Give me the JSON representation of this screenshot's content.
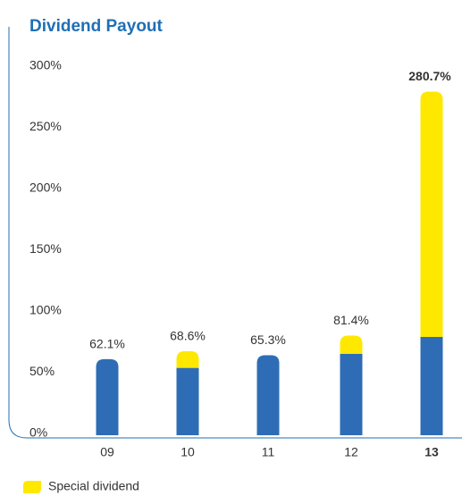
{
  "chart_data": {
    "type": "stacked_bar",
    "title": "Dividend Payout",
    "categories": [
      "09",
      "10",
      "11",
      "12",
      "13"
    ],
    "series": [
      {
        "color": "#2e6db5",
        "values": [
          62.1,
          55,
          65.3,
          66.4,
          80.3
        ]
      },
      {
        "name": "Special dividend",
        "color": "#ffe800",
        "values": [
          0,
          13.6,
          0,
          15,
          200.4
        ]
      }
    ],
    "totals": [
      62.1,
      68.6,
      65.3,
      81.4,
      280.7
    ],
    "total_labels": [
      "62.1%",
      "68.6%",
      "65.3%",
      "81.4%",
      "280.7%"
    ],
    "ylim": [
      0,
      300
    ],
    "yticks": [
      {
        "value": 0,
        "label": "0%"
      },
      {
        "value": 50,
        "label": "50%"
      },
      {
        "value": 100,
        "label": "100%"
      },
      {
        "value": 150,
        "label": "150%"
      },
      {
        "value": 200,
        "label": "200%"
      },
      {
        "value": 250,
        "label": "250%"
      },
      {
        "value": 300,
        "label": "300%"
      }
    ]
  }
}
